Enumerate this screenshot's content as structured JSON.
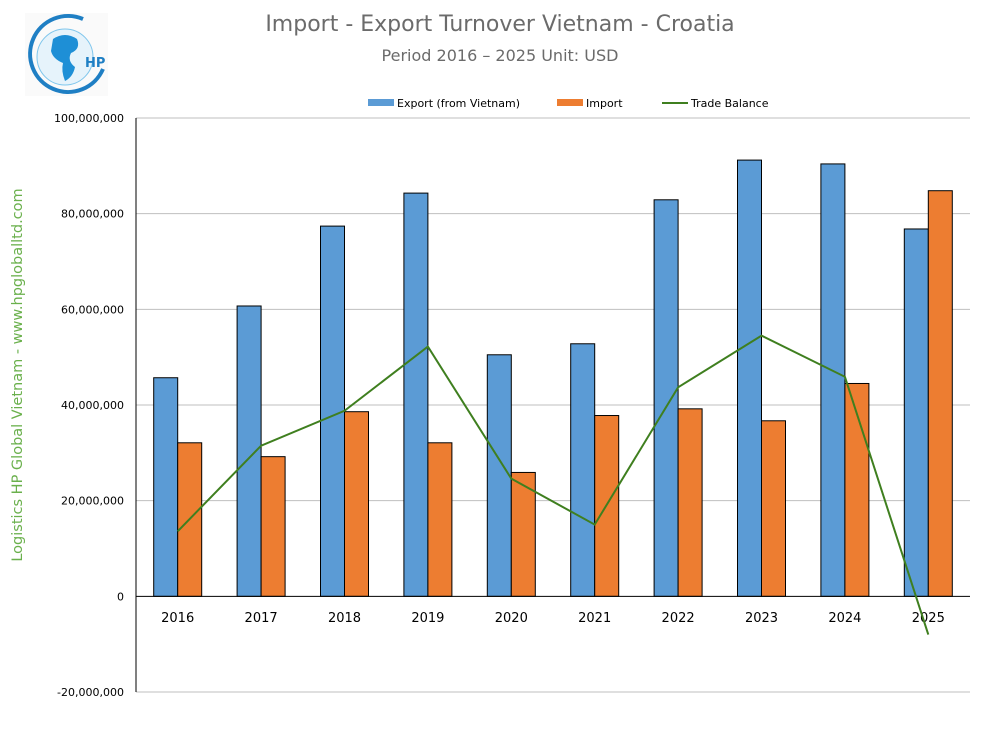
{
  "logo": {
    "text": "HP",
    "colors": [
      "#1f7fc4",
      "#29a3e0"
    ]
  },
  "side_text": "Logistics HP Global Vietnam - www.hpgloballtd.com",
  "chart_data": {
    "type": "bar",
    "title": "Import - Export Turnover Vietnam - Croatia",
    "subtitle": "Period 2016 – 2025  Unit: USD",
    "categories": [
      "2016",
      "2017",
      "2018",
      "2019",
      "2020",
      "2021",
      "2022",
      "2023",
      "2024",
      "2025"
    ],
    "series": [
      {
        "name": "Export (from Vietnam)",
        "type": "bar",
        "color": "#5b9bd5",
        "values": [
          45700000,
          60700000,
          77400000,
          84300000,
          50500000,
          52800000,
          82900000,
          91200000,
          90400000,
          76800000
        ]
      },
      {
        "name": "Import",
        "type": "bar",
        "color": "#ed7d31",
        "values": [
          32100000,
          29200000,
          38600000,
          32100000,
          25900000,
          37800000,
          39200000,
          36700000,
          44500000,
          84800000
        ]
      },
      {
        "name": "Trade Balance",
        "type": "line",
        "color": "#3f7f1f",
        "values": [
          13600000,
          31500000,
          38800000,
          52200000,
          24600000,
          15000000,
          43700000,
          54500000,
          45900000,
          -8000000
        ]
      }
    ],
    "ylim": [
      -20000000,
      100000000
    ],
    "yticks": [
      -20000000,
      0,
      20000000,
      40000000,
      60000000,
      80000000,
      100000000
    ],
    "ytick_labels": [
      "-20,000,000",
      "0",
      "20,000,000",
      "40,000,000",
      "60,000,000",
      "80,000,000",
      "100,000,000"
    ],
    "grid": true,
    "legend": "top"
  }
}
